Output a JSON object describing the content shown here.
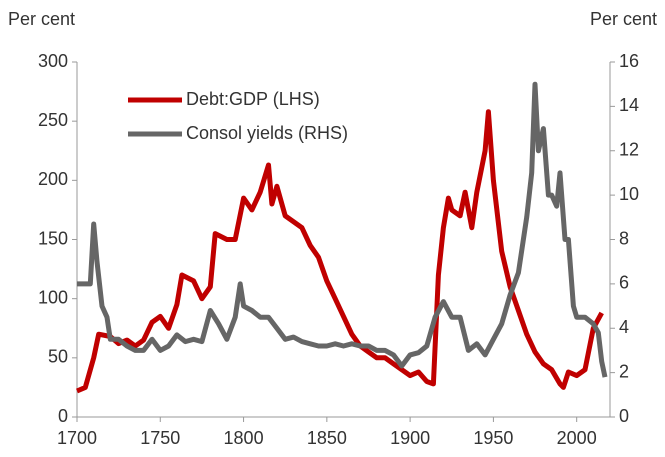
{
  "chart_data": {
    "type": "line",
    "ylabel": "Per cent",
    "y2label": "Per cent",
    "xlim": [
      1700,
      2020
    ],
    "xticks": [
      1700,
      1750,
      1800,
      1850,
      1900,
      1950,
      2000
    ],
    "ylim": [
      0,
      300
    ],
    "yticks": [
      0,
      50,
      100,
      150,
      200,
      250,
      300
    ],
    "y2lim": [
      0,
      16
    ],
    "y2ticks": [
      0,
      2,
      4,
      6,
      8,
      10,
      12,
      14,
      16
    ],
    "series": [
      {
        "name": "Debt:GDP (LHS)",
        "color": "#c00000",
        "x": [
          1700,
          1705,
          1710,
          1713,
          1720,
          1725,
          1730,
          1735,
          1740,
          1745,
          1750,
          1755,
          1760,
          1763,
          1770,
          1775,
          1780,
          1783,
          1790,
          1795,
          1800,
          1805,
          1810,
          1815,
          1817,
          1820,
          1825,
          1830,
          1835,
          1840,
          1845,
          1850,
          1855,
          1860,
          1865,
          1870,
          1875,
          1880,
          1885,
          1890,
          1895,
          1900,
          1905,
          1910,
          1914,
          1917,
          1920,
          1923,
          1925,
          1930,
          1933,
          1937,
          1940,
          1945,
          1947,
          1950,
          1955,
          1960,
          1965,
          1970,
          1975,
          1980,
          1985,
          1990,
          1992,
          1995,
          2000,
          2005,
          2010,
          2015
        ],
        "values": [
          22,
          25,
          50,
          70,
          68,
          62,
          65,
          60,
          65,
          80,
          85,
          75,
          95,
          120,
          115,
          100,
          110,
          155,
          150,
          150,
          185,
          175,
          190,
          213,
          180,
          195,
          170,
          165,
          160,
          145,
          135,
          115,
          100,
          85,
          70,
          60,
          55,
          50,
          50,
          45,
          40,
          35,
          38,
          30,
          28,
          120,
          160,
          185,
          175,
          170,
          190,
          160,
          190,
          225,
          258,
          200,
          140,
          110,
          90,
          70,
          55,
          45,
          40,
          28,
          25,
          38,
          35,
          40,
          75,
          88
        ]
      },
      {
        "name": "Consol yields (RHS)",
        "color": "#666666",
        "axis": "y2",
        "x": [
          1700,
          1708,
          1710,
          1712,
          1715,
          1718,
          1720,
          1725,
          1730,
          1735,
          1740,
          1745,
          1750,
          1755,
          1760,
          1765,
          1770,
          1775,
          1780,
          1785,
          1790,
          1795,
          1798,
          1800,
          1805,
          1810,
          1815,
          1820,
          1825,
          1830,
          1835,
          1840,
          1845,
          1850,
          1855,
          1860,
          1865,
          1870,
          1875,
          1880,
          1885,
          1890,
          1895,
          1900,
          1905,
          1910,
          1915,
          1920,
          1925,
          1930,
          1935,
          1940,
          1945,
          1950,
          1955,
          1960,
          1965,
          1970,
          1973,
          1975,
          1977,
          1980,
          1983,
          1985,
          1988,
          1990,
          1993,
          1995,
          1998,
          2000,
          2005,
          2010,
          2013,
          2015,
          2017
        ],
        "values": [
          6,
          6,
          8.7,
          7,
          5,
          4.5,
          3.5,
          3.5,
          3.2,
          3,
          3,
          3.5,
          3,
          3.2,
          3.7,
          3.4,
          3.5,
          3.4,
          4.8,
          4.2,
          3.5,
          4.5,
          6,
          5,
          4.8,
          4.5,
          4.5,
          4,
          3.5,
          3.6,
          3.4,
          3.3,
          3.2,
          3.2,
          3.3,
          3.2,
          3.3,
          3.2,
          3.2,
          3,
          3,
          2.8,
          2.3,
          2.8,
          2.9,
          3.2,
          4.5,
          5.2,
          4.5,
          4.5,
          3,
          3.3,
          2.8,
          3.5,
          4.2,
          5.5,
          6.5,
          9,
          11,
          15,
          12,
          13,
          10,
          10,
          9.5,
          11,
          8,
          8,
          5,
          4.5,
          4.5,
          4.2,
          3.8,
          2.5,
          1.8
        ]
      }
    ]
  }
}
